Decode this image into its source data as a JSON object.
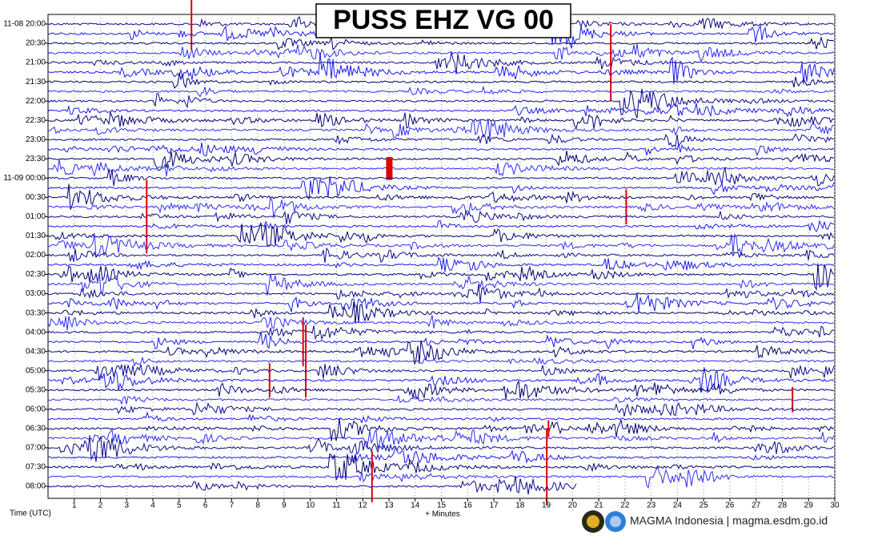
{
  "chart_data": {
    "type": "helicorder",
    "title": "PUSS EHZ VG 00",
    "categories": [
      "11-08 20:00",
      "20:30",
      "21:00",
      "21:30",
      "22:00",
      "22:30",
      "23:00",
      "23:30",
      "11-09 00:00",
      "00:30",
      "01:00",
      "01:30",
      "02:00",
      "02:30",
      "03:00",
      "03:30",
      "04:00",
      "04:30",
      "05:00",
      "05:30",
      "06:00",
      "06:30",
      "07:00",
      "07:30",
      "08:00"
    ],
    "xlim": [
      0,
      30
    ],
    "xticks": [
      1,
      2,
      3,
      4,
      5,
      6,
      7,
      8,
      9,
      10,
      11,
      12,
      13,
      14,
      15,
      16,
      17,
      18,
      19,
      20,
      21,
      22,
      23,
      24,
      25,
      26,
      27,
      28,
      29,
      30
    ],
    "xlabel": "+ Minutes",
    "ylabel": "Time (UTC)",
    "grid": true
  },
  "footer": "MAGMA Indonesia | magma.esdm.go.id"
}
